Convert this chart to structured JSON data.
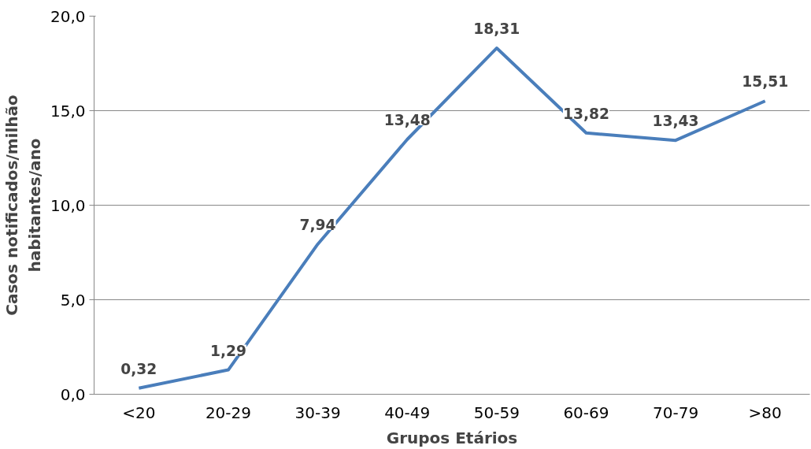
{
  "chart_data": {
    "type": "line",
    "xlabel": "Grupos Etários",
    "ylabel": "Casos notificados/milhão\nhabitantes/ano",
    "categories": [
      "<20",
      "20-29",
      "30-39",
      "40-49",
      "50-59",
      "60-69",
      "70-79",
      ">80"
    ],
    "values": [
      0.32,
      1.29,
      7.94,
      13.48,
      18.31,
      13.82,
      13.43,
      15.51
    ],
    "value_labels": [
      "0,32",
      "1,29",
      "7,94",
      "13,48",
      "18,31",
      "13,82",
      "13,43",
      "15,51"
    ],
    "color": "#4a7ebb",
    "ylim": [
      0,
      20
    ],
    "yticks": [
      {
        "value": 0,
        "label": "0,0"
      },
      {
        "value": 5,
        "label": "5,0"
      },
      {
        "value": 10,
        "label": "10,0"
      },
      {
        "value": 15,
        "label": "15,0"
      },
      {
        "value": 20,
        "label": "20,0"
      }
    ],
    "grid": "y",
    "marker": "none",
    "line_style": "solid"
  }
}
